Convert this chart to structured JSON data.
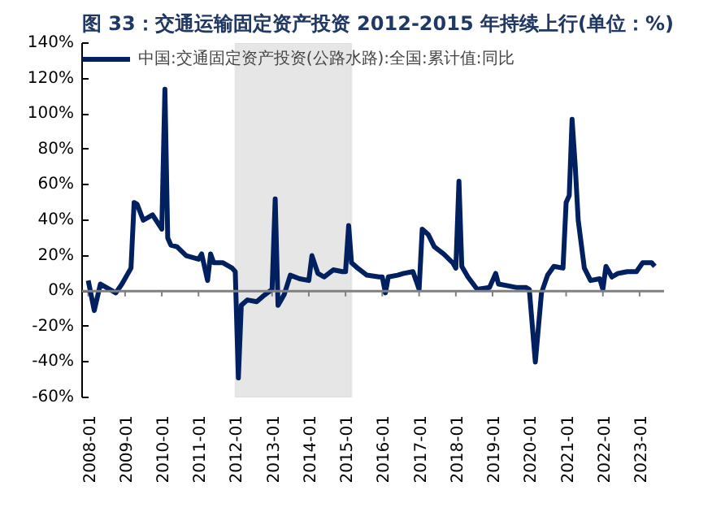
{
  "chart_data": {
    "type": "line",
    "title": "图 33：交通运输固定资产投资 2012-2015 年持续上行(单位：%)",
    "x": [
      "2008-01",
      "2008-03",
      "2008-05",
      "2008-07",
      "2008-10",
      "2008-12",
      "2009-03",
      "2009-04",
      "2009-05",
      "2009-07",
      "2009-10",
      "2010-01",
      "2010-02",
      "2010-03",
      "2010-04",
      "2010-06",
      "2010-09",
      "2011-01",
      "2011-02",
      "2011-04",
      "2011-05",
      "2011-06",
      "2011-09",
      "2011-12",
      "2012-01",
      "2012-02",
      "2012-03",
      "2012-05",
      "2012-08",
      "2012-10",
      "2013-01",
      "2013-02",
      "2013-03",
      "2013-05",
      "2013-07",
      "2013-10",
      "2014-01",
      "2014-02",
      "2014-04",
      "2014-06",
      "2014-09",
      "2014-12",
      "2015-01",
      "2015-02",
      "2015-03",
      "2015-05",
      "2015-08",
      "2015-12",
      "2016-01",
      "2016-02",
      "2016-03",
      "2016-06",
      "2016-08",
      "2016-11",
      "2017-01",
      "2017-02",
      "2017-04",
      "2017-06",
      "2017-09",
      "2017-12",
      "2018-01",
      "2018-02",
      "2018-03",
      "2018-05",
      "2018-08",
      "2018-12",
      "2019-02",
      "2019-03",
      "2019-06",
      "2019-09",
      "2019-12",
      "2020-01",
      "2020-03",
      "2020-05",
      "2020-07",
      "2020-09",
      "2020-12",
      "2021-01",
      "2021-02",
      "2021-03",
      "2021-04",
      "2021-05",
      "2021-07",
      "2021-09",
      "2021-12",
      "2022-01",
      "2022-02",
      "2022-04",
      "2022-06",
      "2022-09",
      "2022-12",
      "2023-02",
      "2023-05",
      "2023-06"
    ],
    "series": [
      {
        "name": "中国:交通固定资产投资(公路水路):全国:累计值:同比",
        "color": "#002060",
        "values": [
          6,
          -11,
          4,
          2,
          -1,
          4,
          13,
          50,
          49,
          40,
          43,
          35,
          114,
          30,
          26,
          25,
          20,
          18,
          21,
          6,
          21,
          16,
          16,
          13,
          11,
          -49,
          -8,
          -5,
          -6,
          -3,
          1,
          52,
          -8,
          -2,
          9,
          7,
          6,
          20,
          10,
          8,
          12,
          11,
          11,
          37,
          16,
          13,
          9,
          8,
          8,
          -1,
          8,
          9,
          10,
          11,
          1,
          35,
          32,
          25,
          21,
          16,
          13,
          62,
          14,
          8,
          1,
          2,
          10,
          4,
          3,
          2,
          2,
          1,
          -40,
          -1,
          9,
          14,
          13,
          50,
          54,
          97,
          71,
          40,
          13,
          6,
          7,
          1,
          14,
          8,
          10,
          11,
          11,
          16,
          16,
          14
        ]
      }
    ],
    "xlim": [
      "2007-11",
      "2023-09"
    ],
    "xticks": [
      "2008-01",
      "2009-01",
      "2010-01",
      "2011-01",
      "2012-01",
      "2013-01",
      "2014-01",
      "2015-01",
      "2016-01",
      "2017-01",
      "2018-01",
      "2019-01",
      "2020-01",
      "2021-01",
      "2022-01",
      "2023-01"
    ],
    "ylim": [
      -60,
      140
    ],
    "yticks": [
      {
        "value": -60,
        "label": "-60%"
      },
      {
        "value": -40,
        "label": "-40%"
      },
      {
        "value": -20,
        "label": "-20%"
      },
      {
        "value": 0,
        "label": "0%"
      },
      {
        "value": 20,
        "label": "20%"
      },
      {
        "value": 40,
        "label": "40%"
      },
      {
        "value": 60,
        "label": "60%"
      },
      {
        "value": 80,
        "label": "80%"
      },
      {
        "value": 100,
        "label": "100%"
      },
      {
        "value": 120,
        "label": "120%"
      },
      {
        "value": 140,
        "label": "140%"
      }
    ],
    "ref_lines": [
      {
        "axis": "y",
        "value": 0,
        "color": "#808080"
      }
    ],
    "bands": [
      {
        "axis": "x",
        "from": "2012-01",
        "to": "2015-03",
        "color": "#e6e6e6"
      }
    ],
    "legend": "top left",
    "grid": false,
    "line_style": "solid",
    "marker": "none"
  }
}
